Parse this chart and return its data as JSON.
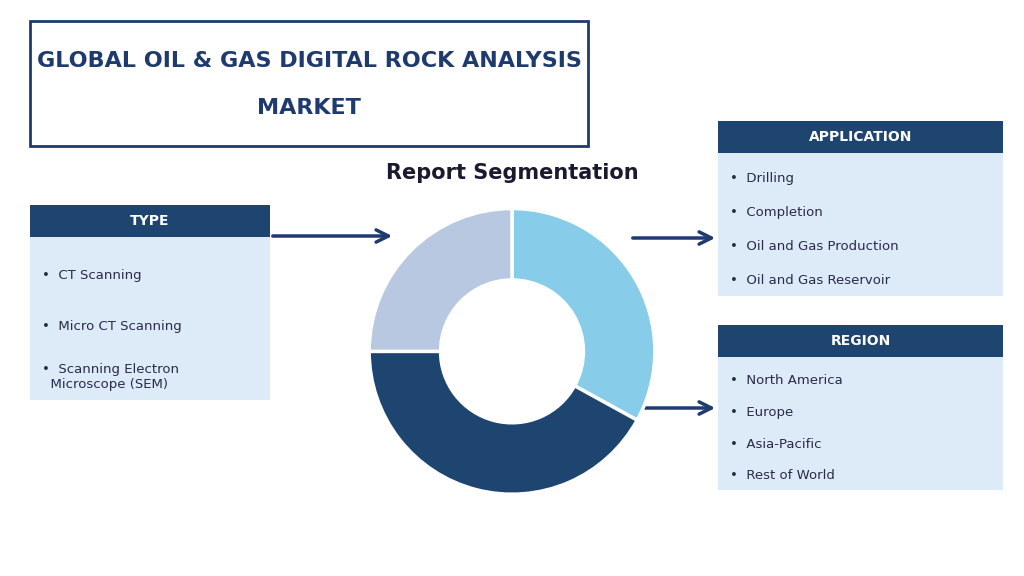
{
  "title_line1": "GLOBAL OIL & GAS DIGITAL ROCK ANALYSIS",
  "title_line2": "MARKET",
  "subtitle": "Report Segmentation",
  "bg_color": "#ffffff",
  "title_box_color": "#ffffff",
  "title_border_color": "#1e3a6e",
  "title_text_color": "#1e3a6e",
  "subtitle_color": "#1a1a2e",
  "header_bg_color": "#1e4470",
  "header_text_color": "#ffffff",
  "content_bg_color": "#ddeaf7",
  "content_text_color": "#2a2a4a",
  "arrow_color": "#1e3a6e",
  "donut_colors": [
    "#87cce8",
    "#1e4470",
    "#b8c8e0"
  ],
  "donut_sizes": [
    33,
    42,
    25
  ],
  "donut_startangle": 90,
  "type_header": "TYPE",
  "type_items": [
    "CT Scanning",
    "Micro CT Scanning",
    "Scanning Electron\n  Microscope (SEM)"
  ],
  "application_header": "APPLICATION",
  "application_items": [
    "Drilling",
    "Completion",
    "Oil and Gas Production",
    "Oil and Gas Reservoir"
  ],
  "region_header": "REGION",
  "region_items": [
    "North America",
    "Europe",
    "Asia-Pacific",
    "Rest of World"
  ]
}
